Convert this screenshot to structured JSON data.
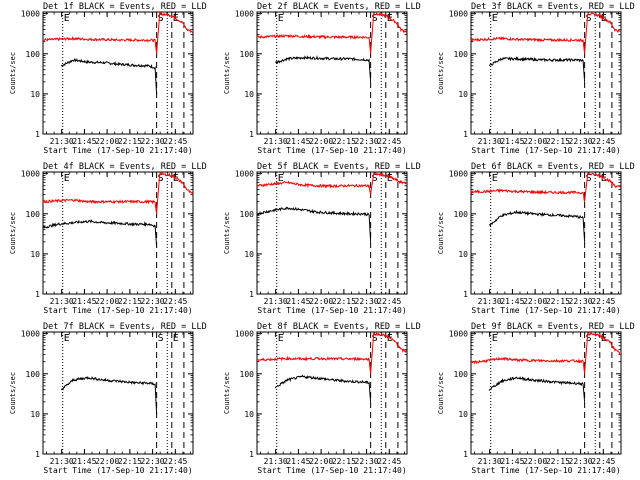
{
  "figure": {
    "panel_ylabel": "Counts/sec",
    "panel_xlabel": "Start Time (17-Sep-10 21:17:40)"
  },
  "chart_data": [
    {
      "type": "line",
      "title": "Det 1f BLACK = Events, RED = LLD",
      "xlabel": "Start Time (17-Sep-10 21:17:40)",
      "ylabel": "Counts/sec",
      "x_ticks": [
        "21:30",
        "21:45",
        "22:00",
        "22:15",
        "22:30",
        "22:45"
      ],
      "y_ticks": [
        "1",
        "10",
        "100",
        "1000"
      ],
      "yscale": "log",
      "ylim": [
        1,
        1100
      ],
      "xlim_minutes_after_21_17_40": [
        0,
        99
      ],
      "markers": [
        {
          "x": 13,
          "style": "dotted",
          "label": "E"
        },
        {
          "x": 75,
          "style": "dashed",
          "label": "S"
        },
        {
          "x": 82,
          "style": "dotted",
          "label": ""
        },
        {
          "x": 85,
          "style": "dashed",
          "label": "E"
        },
        {
          "x": 93,
          "style": "dashed",
          "label": ""
        }
      ],
      "series": [
        {
          "color": "#000000",
          "x": [
            12,
            20,
            30,
            40,
            50,
            60,
            70,
            74,
            75
          ],
          "values": [
            50,
            70,
            62,
            60,
            55,
            52,
            50,
            45,
            10
          ]
        },
        {
          "color": "#ff0000",
          "x": [
            0,
            10,
            20,
            30,
            40,
            50,
            60,
            70,
            74,
            75,
            77,
            85,
            92,
            95,
            99
          ],
          "values": [
            220,
            230,
            240,
            230,
            225,
            220,
            220,
            220,
            215,
            100,
            1000,
            900,
            600,
            400,
            350
          ]
        }
      ]
    },
    {
      "type": "line",
      "title": "Det 2f BLACK = Events, RED = LLD",
      "xlabel": "Start Time (17-Sep-10 21:17:40)",
      "ylabel": "Counts/sec",
      "x_ticks": [
        "21:30",
        "21:45",
        "22:00",
        "22:15",
        "22:30",
        "22:45"
      ],
      "y_ticks": [
        "1",
        "10",
        "100",
        "1000"
      ],
      "yscale": "log",
      "ylim": [
        1,
        1100
      ],
      "xlim_minutes_after_21_17_40": [
        0,
        99
      ],
      "markers": [
        {
          "x": 13,
          "style": "dotted",
          "label": "E"
        },
        {
          "x": 75,
          "style": "dashed",
          "label": "S"
        },
        {
          "x": 82,
          "style": "dotted",
          "label": ""
        },
        {
          "x": 85,
          "style": "dashed",
          "label": "E"
        },
        {
          "x": 93,
          "style": "dashed",
          "label": ""
        }
      ],
      "series": [
        {
          "color": "#000000",
          "x": [
            12,
            20,
            30,
            40,
            50,
            60,
            70,
            74,
            75
          ],
          "values": [
            60,
            75,
            80,
            78,
            75,
            75,
            72,
            70,
            20
          ]
        },
        {
          "color": "#ff0000",
          "x": [
            0,
            10,
            20,
            30,
            40,
            50,
            60,
            70,
            74,
            75,
            77,
            85,
            92,
            95,
            99
          ],
          "values": [
            260,
            270,
            280,
            270,
            265,
            260,
            260,
            260,
            255,
            100,
            1000,
            900,
            600,
            400,
            350
          ]
        }
      ]
    },
    {
      "type": "line",
      "title": "Det 3f BLACK = Events, RED = LLD",
      "xlabel": "Start Time (17-Sep-10 21:17:40)",
      "ylabel": "Counts/sec",
      "x_ticks": [
        "21:30",
        "21:45",
        "22:00",
        "22:15",
        "22:30",
        "22:45"
      ],
      "y_ticks": [
        "1",
        "10",
        "100",
        "1000"
      ],
      "yscale": "log",
      "ylim": [
        1,
        1100
      ],
      "xlim_minutes_after_21_17_40": [
        0,
        99
      ],
      "markers": [
        {
          "x": 13,
          "style": "dotted",
          "label": "E"
        },
        {
          "x": 75,
          "style": "dashed",
          "label": "S"
        },
        {
          "x": 82,
          "style": "dotted",
          "label": ""
        },
        {
          "x": 85,
          "style": "dashed",
          "label": "E"
        },
        {
          "x": 93,
          "style": "dashed",
          "label": ""
        }
      ],
      "series": [
        {
          "color": "#000000",
          "x": [
            12,
            20,
            30,
            40,
            50,
            60,
            70,
            74,
            75
          ],
          "values": [
            50,
            75,
            75,
            72,
            70,
            70,
            70,
            68,
            20
          ]
        },
        {
          "color": "#ff0000",
          "x": [
            0,
            10,
            20,
            30,
            40,
            50,
            60,
            70,
            74,
            75,
            77,
            85,
            92,
            95,
            99
          ],
          "values": [
            220,
            230,
            240,
            230,
            225,
            220,
            220,
            220,
            215,
            100,
            1000,
            900,
            600,
            400,
            350
          ]
        }
      ]
    },
    {
      "type": "line",
      "title": "Det 4f BLACK = Events, RED = LLD",
      "xlabel": "Start Time (17-Sep-10 21:17:40)",
      "ylabel": "Counts/sec",
      "x_ticks": [
        "21:30",
        "21:45",
        "22:00",
        "22:15",
        "22:30",
        "22:45"
      ],
      "y_ticks": [
        "1",
        "10",
        "100",
        "1000"
      ],
      "yscale": "log",
      "ylim": [
        1,
        1100
      ],
      "xlim_minutes_after_21_17_40": [
        0,
        99
      ],
      "markers": [
        {
          "x": 13,
          "style": "dotted",
          "label": "E"
        },
        {
          "x": 75,
          "style": "dashed",
          "label": "S"
        },
        {
          "x": 82,
          "style": "dotted",
          "label": ""
        },
        {
          "x": 85,
          "style": "dashed",
          "label": "E"
        },
        {
          "x": 93,
          "style": "dashed",
          "label": ""
        }
      ],
      "series": [
        {
          "color": "#000000",
          "x": [
            0,
            10,
            20,
            30,
            40,
            50,
            60,
            70,
            74,
            75
          ],
          "values": [
            45,
            55,
            60,
            65,
            60,
            58,
            55,
            55,
            50,
            15
          ]
        },
        {
          "color": "#ff0000",
          "x": [
            0,
            10,
            20,
            30,
            40,
            50,
            60,
            70,
            74,
            75,
            77,
            85,
            92,
            95,
            99
          ],
          "values": [
            200,
            210,
            220,
            200,
            200,
            200,
            200,
            200,
            195,
            100,
            1000,
            900,
            600,
            400,
            300
          ]
        }
      ]
    },
    {
      "type": "line",
      "title": "Det 5f BLACK = Events, RED = LLD",
      "xlabel": "Start Time (17-Sep-10 21:17:40)",
      "ylabel": "Counts/sec",
      "x_ticks": [
        "21:30",
        "21:45",
        "22:00",
        "22:15",
        "22:30",
        "22:45"
      ],
      "y_ticks": [
        "1",
        "10",
        "100",
        "1000"
      ],
      "yscale": "log",
      "ylim": [
        1,
        1100
      ],
      "xlim_minutes_after_21_17_40": [
        0,
        99
      ],
      "markers": [
        {
          "x": 13,
          "style": "dotted",
          "label": "E"
        },
        {
          "x": 75,
          "style": "dashed",
          "label": "S"
        },
        {
          "x": 82,
          "style": "dotted",
          "label": ""
        },
        {
          "x": 85,
          "style": "dashed",
          "label": "E"
        },
        {
          "x": 93,
          "style": "dashed",
          "label": ""
        }
      ],
      "series": [
        {
          "color": "#000000",
          "x": [
            0,
            10,
            20,
            30,
            40,
            50,
            60,
            70,
            74,
            75
          ],
          "values": [
            100,
            120,
            140,
            125,
            110,
            105,
            100,
            100,
            95,
            20
          ]
        },
        {
          "color": "#ff0000",
          "x": [
            0,
            10,
            20,
            30,
            40,
            50,
            60,
            70,
            74,
            75,
            77,
            85,
            92,
            95,
            99
          ],
          "values": [
            500,
            550,
            600,
            520,
            500,
            490,
            500,
            500,
            495,
            300,
            1000,
            900,
            700,
            600,
            600
          ]
        }
      ]
    },
    {
      "type": "line",
      "title": "Det 6f BLACK = Events, RED = LLD",
      "xlabel": "Start Time (17-Sep-10 21:17:40)",
      "ylabel": "Counts/sec",
      "x_ticks": [
        "21:30",
        "21:45",
        "22:00",
        "22:15",
        "22:30",
        "22:45"
      ],
      "y_ticks": [
        "1",
        "10",
        "100",
        "1000"
      ],
      "yscale": "log",
      "ylim": [
        1,
        1100
      ],
      "xlim_minutes_after_21_17_40": [
        0,
        99
      ],
      "markers": [
        {
          "x": 13,
          "style": "dotted",
          "label": "E"
        },
        {
          "x": 75,
          "style": "dashed",
          "label": "S"
        },
        {
          "x": 82,
          "style": "dotted",
          "label": ""
        },
        {
          "x": 85,
          "style": "dashed",
          "label": "E"
        },
        {
          "x": 93,
          "style": "dashed",
          "label": ""
        }
      ],
      "series": [
        {
          "color": "#000000",
          "x": [
            12,
            20,
            30,
            40,
            50,
            60,
            70,
            74,
            75
          ],
          "values": [
            50,
            90,
            110,
            100,
            95,
            90,
            85,
            80,
            20
          ]
        },
        {
          "color": "#ff0000",
          "x": [
            0,
            10,
            20,
            30,
            40,
            50,
            60,
            70,
            74,
            75,
            77,
            85,
            92,
            95,
            99
          ],
          "values": [
            350,
            360,
            380,
            360,
            350,
            340,
            340,
            340,
            335,
            200,
            1000,
            900,
            650,
            500,
            450
          ]
        }
      ]
    },
    {
      "type": "line",
      "title": "Det 7f BLACK = Events, RED = LLD",
      "xlabel": "Start Time (17-Sep-10 21:17:40)",
      "ylabel": "Counts/sec",
      "x_ticks": [
        "21:30",
        "21:45",
        "22:00",
        "22:15",
        "22:30",
        "22:45"
      ],
      "y_ticks": [
        "1",
        "10",
        "100",
        "1000"
      ],
      "yscale": "log",
      "ylim": [
        1,
        1100
      ],
      "xlim_minutes_after_21_17_40": [
        0,
        99
      ],
      "markers": [
        {
          "x": 13,
          "style": "dotted",
          "label": "E"
        },
        {
          "x": 75,
          "style": "dashed",
          "label": "S"
        },
        {
          "x": 82,
          "style": "dotted",
          "label": ""
        },
        {
          "x": 85,
          "style": "dashed",
          "label": "E"
        },
        {
          "x": 93,
          "style": "dashed",
          "label": ""
        }
      ],
      "series": [
        {
          "color": "#000000",
          "x": [
            12,
            20,
            30,
            40,
            50,
            60,
            70,
            74,
            75
          ],
          "values": [
            40,
            70,
            80,
            70,
            65,
            60,
            58,
            55,
            10
          ]
        }
      ]
    },
    {
      "type": "line",
      "title": "Det 8f BLACK = Events, RED = LLD",
      "xlabel": "Start Time (17-Sep-10 21:17:40)",
      "ylabel": "Counts/sec",
      "x_ticks": [
        "21:30",
        "21:45",
        "22:00",
        "22:15",
        "22:30",
        "22:45"
      ],
      "y_ticks": [
        "1",
        "10",
        "100",
        "1000"
      ],
      "yscale": "log",
      "ylim": [
        1,
        1100
      ],
      "xlim_minutes_after_21_17_40": [
        0,
        99
      ],
      "markers": [
        {
          "x": 13,
          "style": "dotted",
          "label": "E"
        },
        {
          "x": 75,
          "style": "dashed",
          "label": "S"
        },
        {
          "x": 82,
          "style": "dotted",
          "label": ""
        },
        {
          "x": 85,
          "style": "dashed",
          "label": "E"
        },
        {
          "x": 93,
          "style": "dashed",
          "label": ""
        }
      ],
      "series": [
        {
          "color": "#000000",
          "x": [
            12,
            20,
            30,
            40,
            50,
            60,
            70,
            74,
            75
          ],
          "values": [
            45,
            70,
            85,
            78,
            70,
            65,
            62,
            60,
            20
          ]
        },
        {
          "color": "#ff0000",
          "x": [
            0,
            10,
            20,
            30,
            40,
            50,
            60,
            70,
            74,
            75,
            77,
            85,
            92,
            95,
            99
          ],
          "values": [
            220,
            230,
            240,
            235,
            240,
            235,
            235,
            235,
            230,
            100,
            1000,
            900,
            600,
            400,
            350
          ]
        }
      ]
    },
    {
      "type": "line",
      "title": "Det 9f BLACK = Events, RED = LLD",
      "xlabel": "Start Time (17-Sep-10 21:17:40)",
      "ylabel": "Counts/sec",
      "x_ticks": [
        "21:30",
        "21:45",
        "22:00",
        "22:15",
        "22:30",
        "22:45"
      ],
      "y_ticks": [
        "1",
        "10",
        "100",
        "1000"
      ],
      "yscale": "log",
      "ylim": [
        1,
        1100
      ],
      "xlim_minutes_after_21_17_40": [
        0,
        99
      ],
      "markers": [
        {
          "x": 13,
          "style": "dotted",
          "label": "E"
        },
        {
          "x": 75,
          "style": "dashed",
          "label": "S"
        },
        {
          "x": 82,
          "style": "dotted",
          "label": ""
        },
        {
          "x": 85,
          "style": "dashed",
          "label": "E"
        },
        {
          "x": 93,
          "style": "dashed",
          "label": ""
        }
      ],
      "series": [
        {
          "color": "#000000",
          "x": [
            12,
            20,
            30,
            40,
            50,
            60,
            70,
            74,
            75
          ],
          "values": [
            40,
            65,
            80,
            70,
            65,
            60,
            58,
            55,
            20
          ]
        },
        {
          "color": "#ff0000",
          "x": [
            0,
            10,
            20,
            30,
            40,
            50,
            60,
            70,
            74,
            75,
            77,
            85,
            92,
            95,
            99
          ],
          "values": [
            190,
            210,
            240,
            220,
            215,
            210,
            210,
            210,
            205,
            100,
            1000,
            900,
            600,
            400,
            300
          ]
        }
      ]
    }
  ]
}
